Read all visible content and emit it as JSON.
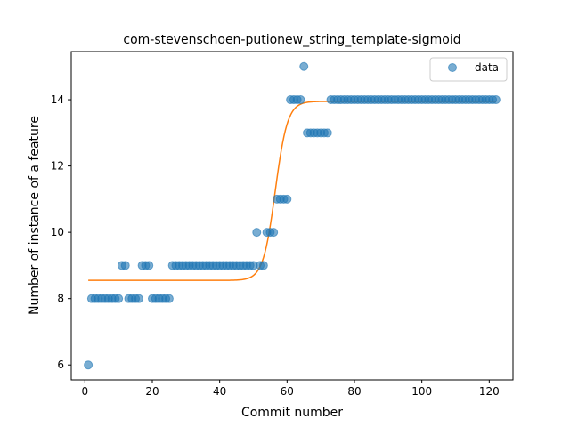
{
  "chart_data": {
    "type": "scatter",
    "title": "com-stevenschoen-putionew_string_template-sigmoid",
    "xlabel": "Commit number",
    "ylabel": "Number of instance of a feature",
    "xlim": [
      -4.05,
      127.05
    ],
    "ylim": [
      5.55,
      15.45
    ],
    "xticks": [
      0,
      20,
      40,
      60,
      80,
      100,
      120
    ],
    "yticks": [
      6,
      8,
      10,
      12,
      14
    ],
    "grid": false,
    "legend_position": "top-right",
    "series": [
      {
        "name": "data",
        "kind": "scatter",
        "color": "#1f77b4",
        "x": [
          1,
          2,
          3,
          4,
          5,
          6,
          7,
          8,
          9,
          10,
          11,
          12,
          13,
          14,
          15,
          16,
          17,
          18,
          19,
          20,
          21,
          22,
          23,
          24,
          25,
          26,
          27,
          28,
          29,
          30,
          31,
          32,
          33,
          34,
          35,
          36,
          37,
          38,
          39,
          40,
          41,
          42,
          43,
          44,
          45,
          46,
          47,
          48,
          49,
          50,
          51,
          52,
          53,
          54,
          55,
          56,
          57,
          58,
          59,
          60,
          61,
          62,
          63,
          64,
          65,
          66,
          67,
          68,
          69,
          70,
          71,
          72,
          73,
          74,
          75,
          76,
          77,
          78,
          79,
          80,
          81,
          82,
          83,
          84,
          85,
          86,
          87,
          88,
          89,
          90,
          91,
          92,
          93,
          94,
          95,
          96,
          97,
          98,
          99,
          100,
          101,
          102,
          103,
          104,
          105,
          106,
          107,
          108,
          109,
          110,
          111,
          112,
          113,
          114,
          115,
          116,
          117,
          118,
          119,
          120,
          121,
          122
        ],
        "y": [
          6,
          8,
          8,
          8,
          8,
          8,
          8,
          8,
          8,
          8,
          9,
          9,
          8,
          8,
          8,
          8,
          9,
          9,
          9,
          8,
          8,
          8,
          8,
          8,
          8,
          9,
          9,
          9,
          9,
          9,
          9,
          9,
          9,
          9,
          9,
          9,
          9,
          9,
          9,
          9,
          9,
          9,
          9,
          9,
          9,
          9,
          9,
          9,
          9,
          9,
          10,
          9,
          9,
          10,
          10,
          10,
          11,
          11,
          11,
          11,
          14,
          14,
          14,
          14,
          15,
          13,
          13,
          13,
          13,
          13,
          13,
          13,
          14,
          14,
          14,
          14,
          14,
          14,
          14,
          14,
          14,
          14,
          14,
          14,
          14,
          14,
          14,
          14,
          14,
          14,
          14,
          14,
          14,
          14,
          14,
          14,
          14,
          14,
          14,
          14,
          14,
          14,
          14,
          14,
          14,
          14,
          14,
          14,
          14,
          14,
          14,
          14,
          14,
          14,
          14,
          14,
          14,
          14,
          14,
          14,
          14,
          14
        ]
      },
      {
        "name": "",
        "kind": "line",
        "color": "#ff7f0e",
        "sigmoid": {
          "low": 8.55,
          "high": 13.95,
          "midpoint": 56.5,
          "steepness": 0.55
        },
        "x_range": [
          1,
          122
        ]
      }
    ]
  },
  "legend": {
    "label": "data"
  }
}
